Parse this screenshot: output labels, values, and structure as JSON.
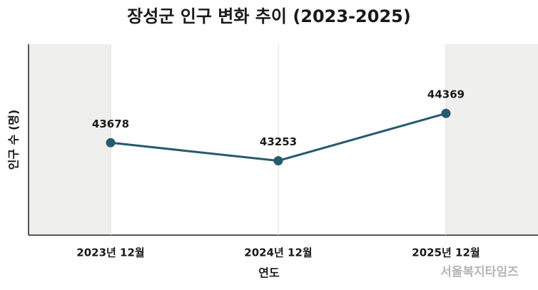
{
  "chart_data": {
    "type": "line",
    "title": "장성군 인구 변화 추이 (2023-2025)",
    "x_label": "연도",
    "y_label": "인구 수 (명)",
    "categories": [
      "2023년 12월",
      "2024년 12월",
      "2025년 12월"
    ],
    "series": [
      {
        "name": "인구 수",
        "color": "#265a6e",
        "values": [
          43678,
          43253,
          44369
        ]
      }
    ],
    "ylim": [
      41500,
      46000
    ],
    "grid": true,
    "watermark": "서울복지타임즈"
  }
}
